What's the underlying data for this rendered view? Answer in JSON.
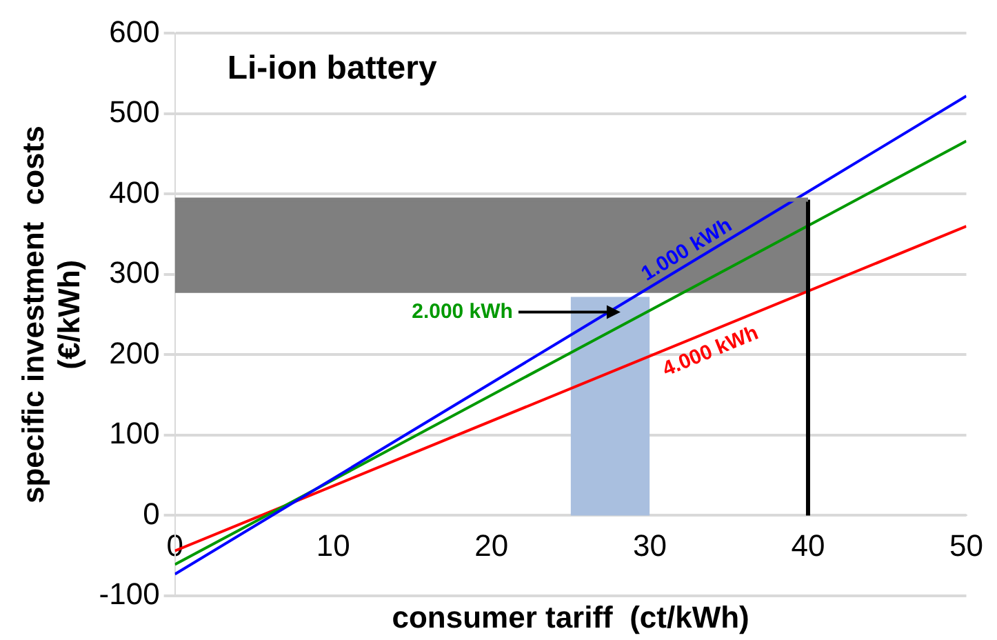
{
  "chart_data": {
    "type": "line",
    "title": "Li-ion battery",
    "xlabel": "consumer tariff  (ct/kWh)",
    "ylabel": "specific investment  costs\n(€/kWh)",
    "xlim": [
      0,
      50
    ],
    "xticks": [
      0,
      10,
      20,
      30,
      40,
      50
    ],
    "ylim": [
      -100,
      600
    ],
    "yticks": [
      -100,
      0,
      100,
      200,
      300,
      400,
      500,
      600
    ],
    "grid": "y",
    "legend": false,
    "marker": "none",
    "line_style": "solid",
    "series": [
      {
        "type": "line",
        "color": "#7f7f7f",
        "x": [
          0,
          40
        ],
        "values": [
          393,
          393
        ],
        "lower": [
          277,
          277
        ],
        "upper": [
          393,
          393
        ]
      },
      {
        "type": "area",
        "color": "#a9bfdf",
        "x": [
          25,
          30
        ],
        "values": [
          272,
          272
        ]
      },
      {
        "type": "line",
        "color": "#000000",
        "x": [
          40,
          40
        ],
        "values": [
          0,
          393
        ]
      },
      {
        "name": "1.000 kWh",
        "color": "#0000ff",
        "x": [
          0,
          50
        ],
        "values": [
          -73,
          522
        ]
      },
      {
        "name": "2.000 kWh",
        "color": "#009900",
        "x": [
          0,
          50
        ],
        "values": [
          -61,
          466
        ]
      },
      {
        "name": "4.000 kWh",
        "color": "#ff0000",
        "x": [
          0,
          50
        ],
        "values": [
          -44,
          360
        ]
      }
    ]
  }
}
